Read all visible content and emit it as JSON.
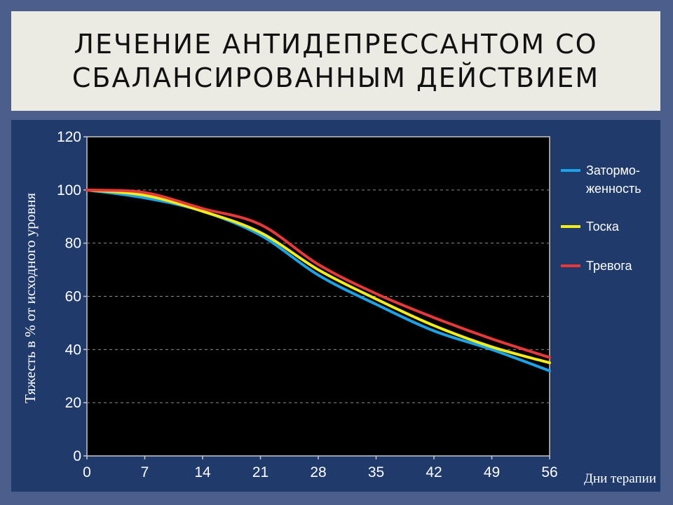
{
  "slide": {
    "title_line1": "ЛЕЧЕНИЕ АНТИДЕПРЕССАНТОМ СО",
    "title_line2": "СБАЛАНСИРОВАННЫМ ДЕЙСТВИЕМ"
  },
  "colors": {
    "page_bg": "#4a5f8c",
    "chart_panel_bg": "#1f3a6b",
    "plot_bg": "#000000"
  },
  "chart_data": {
    "type": "line",
    "title": "",
    "xlabel": "Дни терапии",
    "ylabel": "Тяжесть в % от исходного уровня",
    "xlim": [
      0,
      56
    ],
    "ylim": [
      0,
      120
    ],
    "x_ticks": [
      0,
      7,
      14,
      21,
      28,
      35,
      42,
      49,
      56
    ],
    "y_ticks": [
      0,
      20,
      40,
      60,
      80,
      100,
      120
    ],
    "grid": true,
    "legend": "right",
    "series": [
      {
        "name_lines": [
          "Затормо-",
          "женность"
        ],
        "color": "#1aa3e8",
        "x": [
          0,
          7,
          14,
          21,
          28,
          35,
          42,
          49,
          56
        ],
        "y": [
          100,
          97,
          92,
          83,
          68,
          57,
          47,
          40,
          32
        ]
      },
      {
        "name_lines": [
          "Тоска"
        ],
        "color": "#f2ec18",
        "x": [
          0,
          7,
          14,
          21,
          28,
          35,
          42,
          49,
          56
        ],
        "y": [
          100,
          98,
          92,
          84,
          70,
          59,
          49,
          41,
          35
        ]
      },
      {
        "name_lines": [
          "Тревога"
        ],
        "color": "#e8383a",
        "x": [
          0,
          7,
          14,
          21,
          28,
          35,
          42,
          49,
          56
        ],
        "y": [
          100,
          99,
          93,
          87,
          72,
          61,
          52,
          44,
          37
        ]
      }
    ]
  }
}
